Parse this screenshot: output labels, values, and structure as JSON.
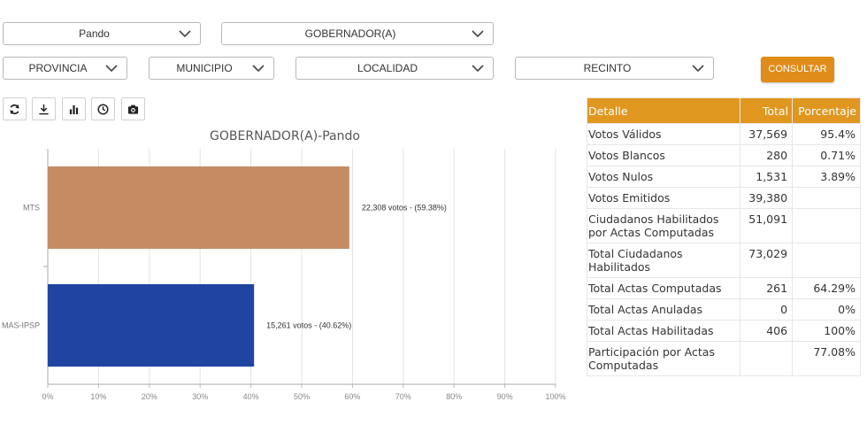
{
  "filters": {
    "departamento": "Pando",
    "cargo": "GOBERNADOR(A)",
    "provincia": "PROVINCIA",
    "municipio": "MUNICIPIO",
    "localidad": "LOCALIDAD",
    "recinto": "RECINTO",
    "consultar_label": "CONSULTAR"
  },
  "toolbar": {
    "icons": [
      "refresh-icon",
      "download-icon",
      "bar-chart-icon",
      "clock-icon",
      "camera-icon"
    ]
  },
  "colors": {
    "accent": "#e0971f",
    "mts": "#c58b63",
    "mas": "#1f45a0"
  },
  "chart_data": {
    "type": "bar",
    "orientation": "horizontal",
    "title": "GOBERNADOR(A)-Pando",
    "categories": [
      "MTS",
      "MAS-IPSP"
    ],
    "values": [
      59.38,
      40.62
    ],
    "data_labels": [
      "22,308 votos - (59.38%)",
      "15,261 votos - (40.62%)"
    ],
    "colors": [
      "#c58b63",
      "#1f45a0"
    ],
    "xlim": [
      0,
      100
    ],
    "x_ticks": [
      0,
      10,
      20,
      30,
      40,
      50,
      60,
      70,
      80,
      90,
      100
    ],
    "x_tick_labels": [
      "0%",
      "10%",
      "20%",
      "30%",
      "40%",
      "50%",
      "60%",
      "70%",
      "80%",
      "90%",
      "100%"
    ],
    "grid": true
  },
  "results": {
    "headers": [
      "Detalle",
      "Total",
      "Porcentaje"
    ],
    "rows": [
      [
        "Votos Válidos",
        "37,569",
        "95.4%"
      ],
      [
        "Votos Blancos",
        "280",
        "0.71%"
      ],
      [
        "Votos Nulos",
        "1,531",
        "3.89%"
      ],
      [
        "Votos Emitidos",
        "39,380",
        ""
      ],
      [
        "Ciudadanos Habilitados por Actas Computadas",
        "51,091",
        ""
      ],
      [
        "Total Ciudadanos Habilitados",
        "73,029",
        ""
      ],
      [
        "Total Actas Computadas",
        "261",
        "64.29%"
      ],
      [
        "Total Actas Anuladas",
        "0",
        "0%"
      ],
      [
        "Total Actas Habilitadas",
        "406",
        "100%"
      ],
      [
        "Participación por Actas Computadas",
        "",
        "77.08%"
      ]
    ]
  }
}
